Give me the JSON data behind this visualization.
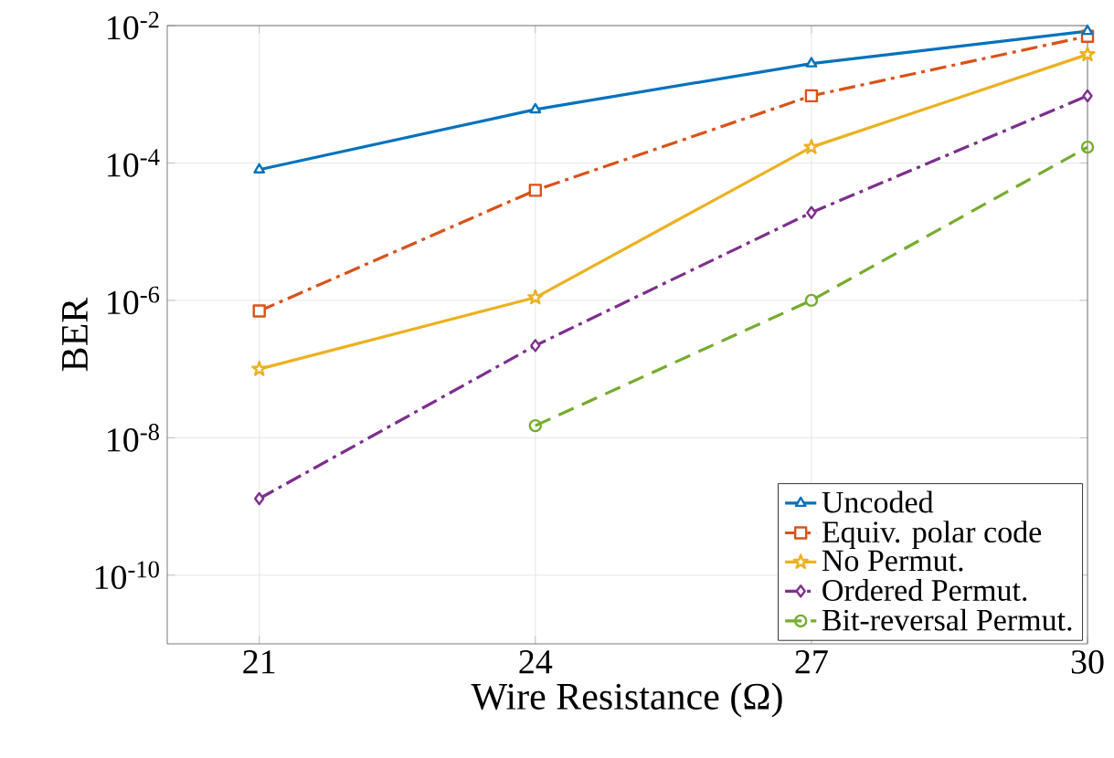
{
  "chart_data": {
    "type": "line",
    "xlabel": "Wire Resistance (Ω)",
    "ylabel": "BER",
    "x": [
      21,
      24,
      27,
      30
    ],
    "series": [
      {
        "name": "Uncoded",
        "color": "#0072bd",
        "marker": "triangle",
        "line_style": "solid",
        "values": [
          8e-05,
          0.0006,
          0.0028,
          0.0083
        ]
      },
      {
        "name": "Equiv. polar code",
        "color": "#d95319",
        "marker": "square",
        "line_style": "dashdot",
        "values": [
          7e-07,
          4e-05,
          0.00095,
          0.007
        ]
      },
      {
        "name": "No Permut.",
        "color": "#edb120",
        "marker": "star",
        "line_style": "solid",
        "values": [
          1e-07,
          1.1e-06,
          0.00017,
          0.0038
        ]
      },
      {
        "name": "Ordered Permut.",
        "color": "#7e2f8e",
        "marker": "diamond",
        "line_style": "dashdot",
        "values": [
          1.3e-09,
          2.2e-07,
          1.9e-05,
          0.00095
        ]
      },
      {
        "name": "Bit-reversal Permut.",
        "color": "#77ac30",
        "marker": "circle",
        "line_style": "dashed",
        "values": [
          null,
          1.5e-08,
          1e-06,
          0.00017
        ]
      }
    ],
    "xlim": [
      20,
      30
    ],
    "ylim": [
      1e-11,
      0.01
    ],
    "xticks": [
      21,
      24,
      27,
      30
    ],
    "yticks": [
      {
        "value": 1e-10,
        "label": "10$^{-10}$"
      },
      {
        "value": 1e-08,
        "label": "10$^{-8}$"
      },
      {
        "value": 1e-06,
        "label": "10$^{-6}$"
      },
      {
        "value": 0.0001,
        "label": "10$^{-4}$"
      },
      {
        "value": 0.01,
        "label": "10$^{-2}$"
      }
    ],
    "log": "y",
    "grid": true,
    "legend": "bottom right"
  }
}
